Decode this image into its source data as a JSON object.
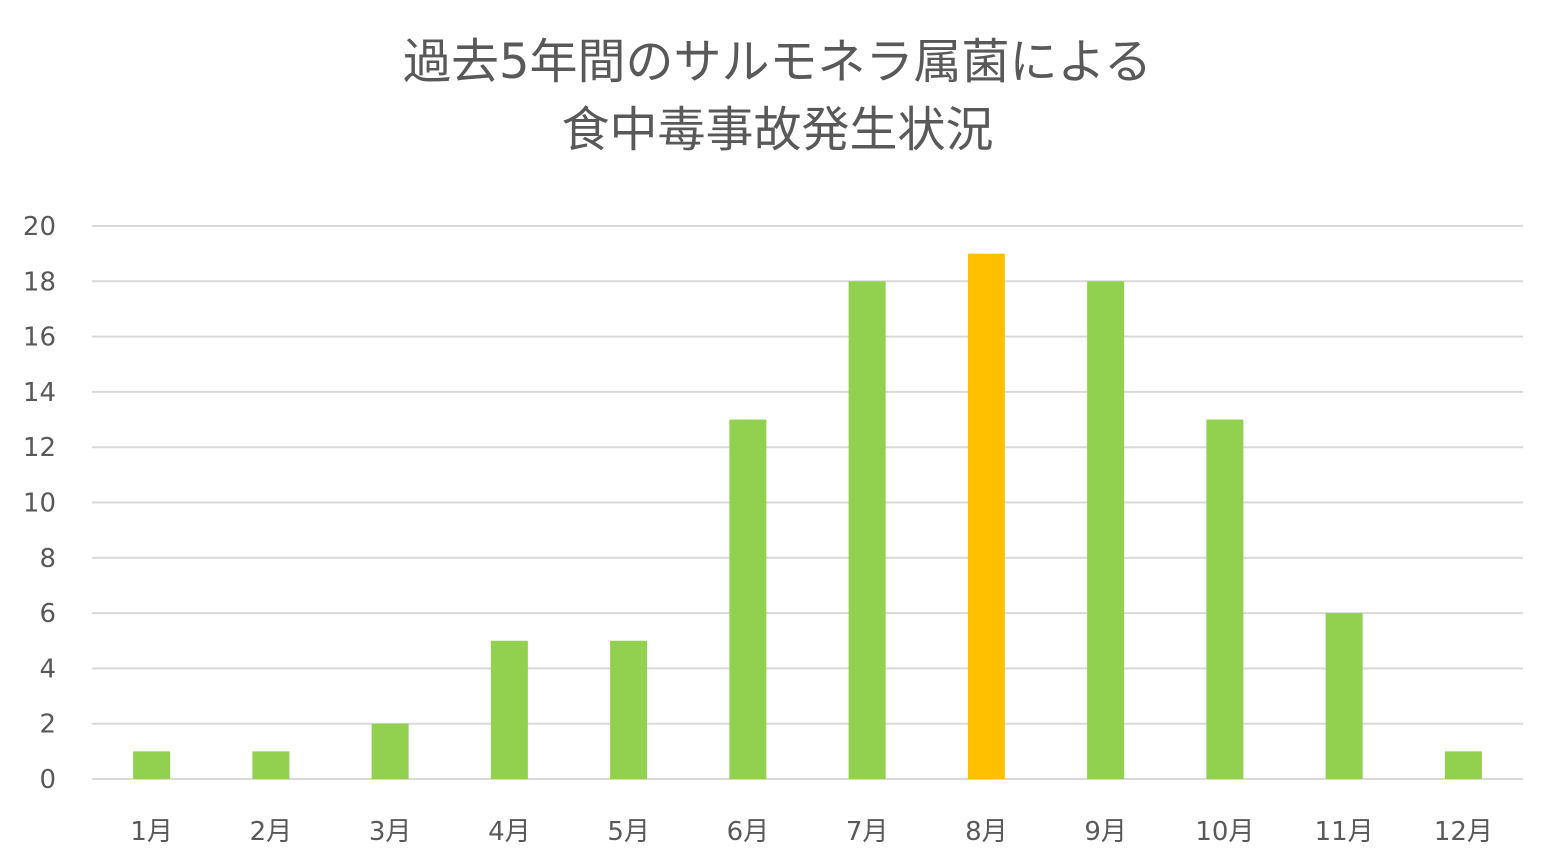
{
  "chart_data": {
    "type": "bar",
    "title": [
      "過去5年間のサルモネラ属菌による",
      "食中毒事故発生状況"
    ],
    "categories": [
      "1月",
      "2月",
      "3月",
      "4月",
      "5月",
      "6月",
      "7月",
      "8月",
      "9月",
      "10月",
      "11月",
      "12月"
    ],
    "values": [
      1,
      1,
      2,
      5,
      5,
      13,
      18,
      19,
      18,
      13,
      6,
      1
    ],
    "ylim": [
      0,
      20
    ],
    "yticks": [
      0,
      2,
      4,
      6,
      8,
      10,
      12,
      14,
      16,
      18,
      20
    ],
    "grid": true,
    "legend": "none",
    "colors": {
      "bar": "#92d050",
      "highlight": "#ffc000",
      "grid": "#d9d9d9",
      "text": "#595959"
    },
    "highlight_category": "8月"
  }
}
